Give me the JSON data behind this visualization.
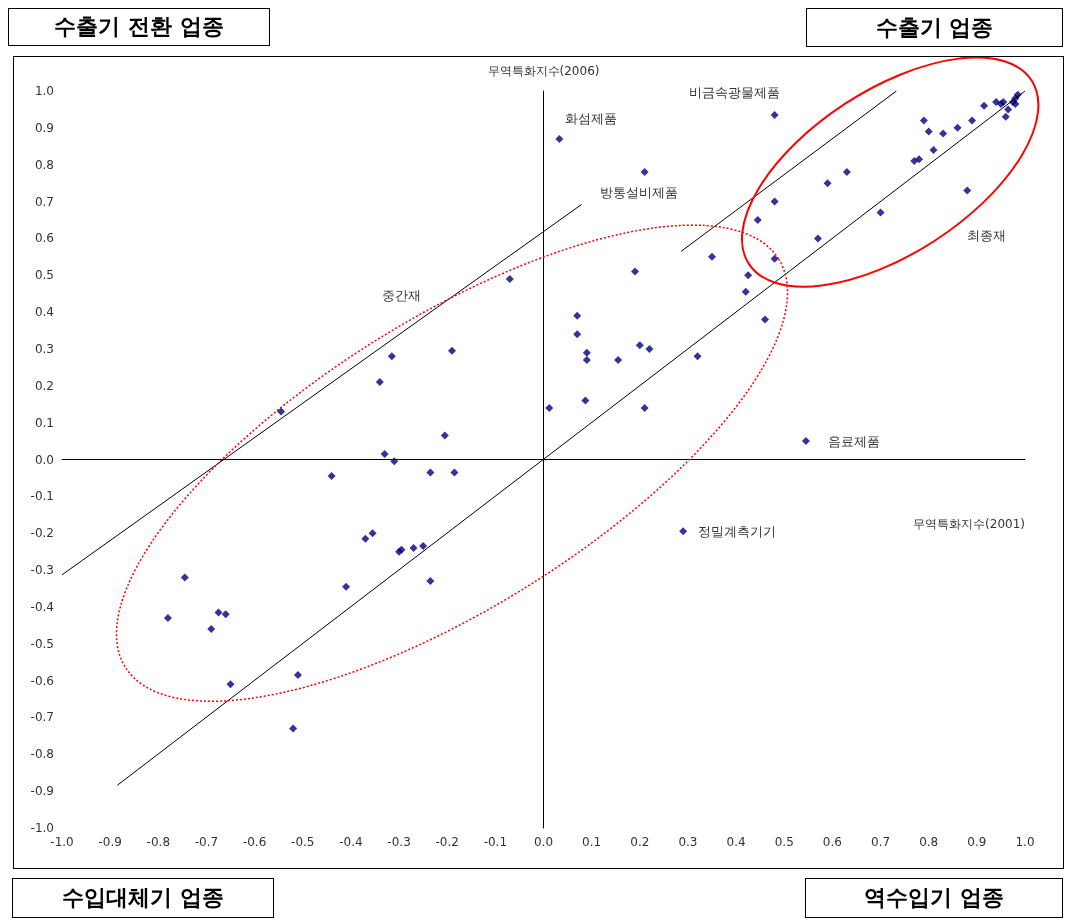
{
  "chart_data": {
    "type": "scatter",
    "xlabel": "무역특화지수(2001)",
    "ylabel": "무역특화지수(2006)",
    "xlim": [
      -1,
      1
    ],
    "ylim": [
      -1,
      1
    ],
    "xticks": [
      {
        "value": -1,
        "label": "-1.0"
      },
      {
        "value": -0.9,
        "label": "-0.9"
      },
      {
        "value": -0.8,
        "label": "-0.8"
      },
      {
        "value": -0.7,
        "label": "-0.7"
      },
      {
        "value": -0.6,
        "label": "-0.6"
      },
      {
        "value": -0.5,
        "label": "-0.5"
      },
      {
        "value": -0.4,
        "label": "-0.4"
      },
      {
        "value": -0.3,
        "label": "-0.3"
      },
      {
        "value": -0.2,
        "label": "-0.2"
      },
      {
        "value": -0.1,
        "label": "-0.1"
      },
      {
        "value": 0,
        "label": "0.0"
      },
      {
        "value": 0.1,
        "label": "0.1"
      },
      {
        "value": 0.2,
        "label": "0.2"
      },
      {
        "value": 0.3,
        "label": "0.3"
      },
      {
        "value": 0.4,
        "label": "0.4"
      },
      {
        "value": 0.5,
        "label": "0.5"
      },
      {
        "value": 0.6,
        "label": "0.6"
      },
      {
        "value": 0.7,
        "label": "0.7"
      },
      {
        "value": 0.8,
        "label": "0.8"
      },
      {
        "value": 0.9,
        "label": "0.9"
      },
      {
        "value": 1,
        "label": "1.0"
      }
    ],
    "yticks": [
      {
        "value": -1,
        "label": "-1.0"
      },
      {
        "value": -0.9,
        "label": "-0.9"
      },
      {
        "value": -0.8,
        "label": "-0.8"
      },
      {
        "value": -0.7,
        "label": "-0.7"
      },
      {
        "value": -0.6,
        "label": "-0.6"
      },
      {
        "value": -0.5,
        "label": "-0.5"
      },
      {
        "value": -0.4,
        "label": "-0.4"
      },
      {
        "value": -0.3,
        "label": "-0.3"
      },
      {
        "value": -0.2,
        "label": "-0.2"
      },
      {
        "value": -0.1,
        "label": "-0.1"
      },
      {
        "value": 0,
        "label": "0.0"
      },
      {
        "value": 0.1,
        "label": "0.1"
      },
      {
        "value": 0.2,
        "label": "0.2"
      },
      {
        "value": 0.3,
        "label": "0.3"
      },
      {
        "value": 0.4,
        "label": "0.4"
      },
      {
        "value": 0.5,
        "label": "0.5"
      },
      {
        "value": 0.6,
        "label": "0.6"
      },
      {
        "value": 0.7,
        "label": "0.7"
      },
      {
        "value": 0.8,
        "label": "0.8"
      },
      {
        "value": 0.9,
        "label": "0.9"
      },
      {
        "value": 1,
        "label": "1.0"
      }
    ],
    "series": [
      {
        "marker": "diamond",
        "color": "#000080",
        "x": [
          0.033,
          0.21,
          0.48,
          0.35,
          0.19,
          -0.07,
          0.07,
          0.07,
          0.09,
          0.09,
          0.2,
          0.22,
          0.155,
          0.32,
          0.012,
          0.087,
          0.21,
          0.425,
          0.42,
          0.46,
          0.48,
          0.48,
          0.445,
          0.59,
          0.63,
          0.57,
          0.7,
          0.77,
          0.78,
          0.79,
          0.8,
          0.81,
          0.83,
          0.86,
          0.88,
          0.89,
          0.915,
          0.94,
          0.95,
          0.955,
          0.96,
          0.965,
          0.975,
          0.98,
          0.985,
          0.98,
          0.545,
          0.29,
          -0.545,
          -0.34,
          -0.315,
          -0.19,
          -0.33,
          -0.31,
          -0.205,
          -0.44,
          -0.235,
          -0.185,
          -0.37,
          -0.355,
          -0.3,
          -0.295,
          -0.27,
          -0.25,
          -0.41,
          -0.235,
          -0.745,
          -0.78,
          -0.675,
          -0.66,
          -0.69,
          -0.65,
          -0.51,
          -0.52
        ],
        "values": [
          0.87,
          0.78,
          0.935,
          0.55,
          0.51,
          0.49,
          0.39,
          0.34,
          0.29,
          0.27,
          0.31,
          0.3,
          0.27,
          0.28,
          0.14,
          0.16,
          0.14,
          0.5,
          0.455,
          0.38,
          0.545,
          0.7,
          0.65,
          0.75,
          0.78,
          0.6,
          0.67,
          0.81,
          0.815,
          0.92,
          0.89,
          0.84,
          0.885,
          0.9,
          0.73,
          0.92,
          0.96,
          0.97,
          0.965,
          0.97,
          0.93,
          0.95,
          0.97,
          0.98,
          0.99,
          0.965,
          0.05,
          -0.195,
          0.13,
          0.21,
          0.28,
          0.295,
          0.015,
          -0.005,
          0.065,
          -0.045,
          -0.035,
          -0.035,
          -0.215,
          -0.2,
          -0.25,
          -0.245,
          -0.24,
          -0.235,
          -0.345,
          -0.33,
          -0.32,
          -0.43,
          -0.415,
          -0.42,
          -0.46,
          -0.61,
          -0.585,
          -0.73
        ]
      },
      {
        "type": "line",
        "marker": "none",
        "color": "#000000",
        "x": [
          -0.885,
          1
        ],
        "values": [
          -0.884,
          1
        ]
      },
      {
        "type": "line",
        "marker": "none",
        "color": "#000000",
        "x": [
          -1,
          0.079
        ],
        "values": [
          -0.313,
          0.692
        ]
      },
      {
        "type": "line",
        "marker": "none",
        "color": "#000000",
        "x": [
          0.286,
          0.733
        ],
        "values": [
          0.565,
          1
        ]
      }
    ],
    "annotations": [
      "수출기 전환 업종",
      "수출기 업종",
      "수입대체기 업종",
      "역수입기 업종",
      {
        "text": "화섬제품",
        "x": 0.033,
        "y": 0.87
      },
      {
        "text": "비금속광물제품",
        "x": 0.48,
        "y": 0.935
      },
      {
        "text": "방통설비제품",
        "x": 0.21,
        "y": 0.78
      },
      {
        "text": "음료제품",
        "x": 0.545,
        "y": 0.05
      },
      {
        "text": "정밀계측기기",
        "x": 0.29,
        "y": -0.195
      },
      "중간재",
      "최종재"
    ]
  }
}
